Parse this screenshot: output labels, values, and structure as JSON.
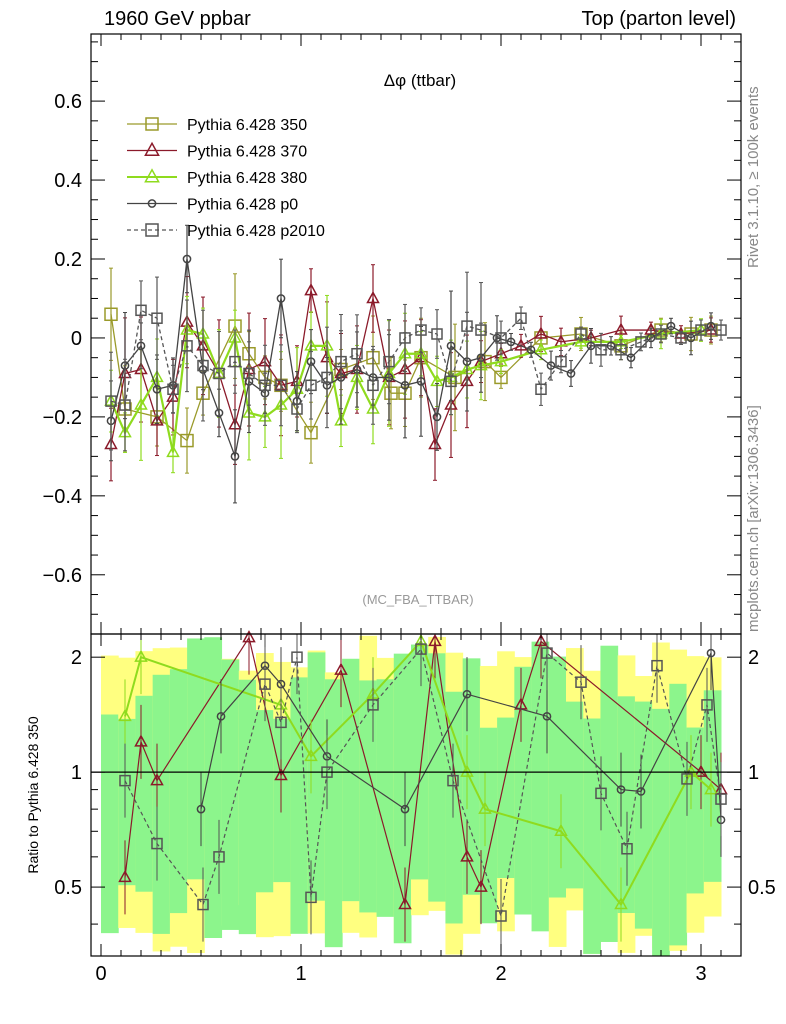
{
  "header": {
    "left": "1960 GeV ppbar",
    "right": "Top (parton level)"
  },
  "side": {
    "rivet": "Rivet 3.1.10, ≥ 100k events",
    "mcplots": "mcplots.cern.ch [arXiv:1306.3436]"
  },
  "chart_data": [
    {
      "type": "line",
      "panel": "main",
      "title": "Δφ (ttbar)",
      "analysis_label": "(MC_FBA_TTBAR)",
      "xlabel": "",
      "ylabel": "",
      "xlim": [
        -0.05,
        3.2
      ],
      "ylim": [
        -0.75,
        0.77
      ],
      "xticks": [
        0,
        1,
        2,
        3
      ],
      "yticks": [
        -0.6,
        -0.4,
        -0.2,
        0,
        0.2,
        0.4,
        0.6
      ],
      "ytick_labels": [
        "−0.6",
        "−0.4",
        "−0.2",
        "0",
        "0.2",
        "0.4",
        "0.6"
      ],
      "legend_position": "top-left",
      "series": [
        {
          "name": "Pythia 6.428 350",
          "color": "#9a9a2a",
          "marker": "square-open",
          "dash": "solid",
          "x": [
            0.05,
            0.12,
            0.28,
            0.43,
            0.51,
            0.67,
            0.74,
            0.82,
            0.9,
            1.05,
            1.2,
            1.36,
            1.45,
            1.52,
            1.6,
            1.77,
            1.92,
            2.0,
            2.2,
            2.4,
            2.6,
            2.8,
            2.95,
            3.05
          ],
          "y": [
            0.06,
            -0.18,
            -0.2,
            -0.26,
            -0.14,
            0.03,
            -0.04,
            -0.1,
            -0.12,
            -0.24,
            -0.08,
            -0.05,
            -0.14,
            -0.14,
            -0.05,
            -0.1,
            -0.06,
            -0.1,
            0.0,
            0.01,
            -0.02,
            0.02,
            0.01,
            0.02
          ]
        },
        {
          "name": "Pythia 6.428 370",
          "color": "#8b1a2a",
          "marker": "triangle-open",
          "dash": "solid",
          "x": [
            0.05,
            0.12,
            0.2,
            0.28,
            0.36,
            0.43,
            0.51,
            0.59,
            0.67,
            0.74,
            0.82,
            0.9,
            0.98,
            1.05,
            1.13,
            1.2,
            1.28,
            1.36,
            1.44,
            1.52,
            1.6,
            1.67,
            1.75,
            1.83,
            1.9,
            2.0,
            2.1,
            2.2,
            2.3,
            2.45,
            2.6,
            2.75,
            2.9,
            3.05
          ],
          "y": [
            -0.27,
            -0.09,
            -0.08,
            -0.21,
            -0.15,
            0.04,
            -0.02,
            -0.09,
            -0.22,
            -0.08,
            -0.06,
            -0.12,
            -0.11,
            0.12,
            -0.05,
            -0.09,
            -0.08,
            0.1,
            -0.1,
            -0.08,
            -0.05,
            -0.27,
            -0.17,
            -0.11,
            -0.06,
            -0.04,
            -0.02,
            0.01,
            -0.01,
            0.0,
            0.02,
            0.02,
            0.01,
            0.02
          ]
        },
        {
          "name": "Pythia 6.428 380",
          "color": "#8fdb1e",
          "marker": "triangle-open",
          "dash": "solid",
          "x": [
            0.05,
            0.12,
            0.2,
            0.28,
            0.36,
            0.43,
            0.51,
            0.59,
            0.67,
            0.74,
            0.82,
            0.9,
            0.98,
            1.05,
            1.13,
            1.2,
            1.28,
            1.36,
            1.44,
            1.52,
            1.6,
            1.68,
            1.75,
            1.83,
            1.9,
            2.0,
            2.2,
            2.4,
            2.6,
            2.8,
            3.0
          ],
          "y": [
            -0.16,
            -0.24,
            -0.17,
            -0.1,
            -0.29,
            0.02,
            0.01,
            -0.09,
            0.0,
            -0.19,
            -0.2,
            -0.17,
            -0.13,
            -0.02,
            -0.02,
            -0.21,
            -0.1,
            -0.18,
            -0.09,
            -0.04,
            -0.04,
            -0.11,
            -0.1,
            -0.08,
            -0.07,
            -0.06,
            -0.03,
            -0.01,
            -0.01,
            0.01,
            0.02
          ]
        },
        {
          "name": "Pythia 6.428 p0",
          "color": "#444444",
          "marker": "circle-open",
          "dash": "solid",
          "x": [
            0.05,
            0.12,
            0.2,
            0.28,
            0.36,
            0.43,
            0.51,
            0.59,
            0.67,
            0.74,
            0.82,
            0.9,
            0.98,
            1.05,
            1.13,
            1.2,
            1.28,
            1.36,
            1.44,
            1.52,
            1.6,
            1.68,
            1.75,
            1.83,
            1.9,
            1.98,
            2.05,
            2.15,
            2.25,
            2.35,
            2.45,
            2.55,
            2.65,
            2.75,
            2.85,
            2.95,
            3.05
          ],
          "y": [
            -0.21,
            -0.07,
            -0.02,
            -0.13,
            -0.12,
            0.2,
            -0.08,
            -0.19,
            -0.3,
            -0.11,
            -0.14,
            0.1,
            -0.16,
            -0.06,
            -0.12,
            -0.1,
            -0.08,
            -0.1,
            -0.1,
            -0.12,
            -0.11,
            -0.2,
            -0.02,
            -0.06,
            -0.05,
            0.0,
            -0.01,
            -0.03,
            -0.07,
            -0.09,
            -0.02,
            -0.02,
            -0.05,
            0.0,
            0.03,
            0.0,
            0.03
          ]
        },
        {
          "name": "Pythia 6.428 p2010",
          "color": "#555555",
          "marker": "square-open",
          "dash": "dashed",
          "x": [
            0.05,
            0.12,
            0.2,
            0.28,
            0.36,
            0.43,
            0.51,
            0.59,
            0.67,
            0.74,
            0.82,
            0.9,
            0.98,
            1.05,
            1.13,
            1.2,
            1.28,
            1.36,
            1.44,
            1.52,
            1.6,
            1.68,
            1.75,
            1.83,
            1.9,
            2.0,
            2.1,
            2.2,
            2.3,
            2.4,
            2.5,
            2.6,
            2.7,
            2.8,
            2.9,
            3.0,
            3.1
          ],
          "y": [
            -0.16,
            -0.17,
            0.07,
            0.05,
            -0.13,
            -0.02,
            -0.07,
            -0.09,
            -0.06,
            -0.09,
            -0.12,
            -0.12,
            -0.18,
            -0.12,
            -0.1,
            -0.06,
            -0.04,
            -0.12,
            -0.06,
            0.0,
            0.02,
            0.01,
            -0.11,
            0.03,
            0.02,
            0.0,
            0.05,
            -0.13,
            -0.06,
            0.01,
            -0.03,
            -0.03,
            -0.01,
            0.01,
            0.0,
            0.02,
            0.02
          ]
        }
      ]
    },
    {
      "type": "line",
      "panel": "ratio",
      "ylabel": "Ratio to Pythia 6.428 350",
      "xlim": [
        -0.05,
        3.2
      ],
      "ylim": [
        0.33,
        2.3
      ],
      "yscale": "log",
      "xticks": [
        0,
        1,
        2,
        3
      ],
      "yticks": [
        0.5,
        1,
        2
      ],
      "ytick_labels": [
        "0.5",
        "1",
        "2"
      ],
      "reference_line": 1,
      "bands": {
        "outer_color": "#ffff80",
        "inner_color": "#8cf58c"
      },
      "series": [
        {
          "name": "Pythia 6.428 370",
          "color": "#8b1a2a",
          "x": [
            0.12,
            0.2,
            0.28,
            0.74,
            0.9,
            1.2,
            1.52,
            1.67,
            1.83,
            1.9,
            2.1,
            2.2,
            3.0,
            3.1
          ],
          "y": [
            0.53,
            1.2,
            0.95,
            2.25,
            0.98,
            1.85,
            0.45,
            2.2,
            0.6,
            0.5,
            1.5,
            2.2,
            1.0,
            0.9
          ]
        },
        {
          "name": "Pythia 6.428 380",
          "color": "#8fdb1e",
          "x": [
            0.12,
            0.2,
            0.9,
            1.05,
            1.36,
            1.6,
            1.83,
            1.92,
            2.3,
            2.6,
            2.95,
            3.05
          ],
          "y": [
            1.4,
            2.0,
            1.5,
            1.1,
            1.6,
            2.2,
            1.0,
            0.8,
            0.7,
            0.45,
            1.0,
            0.9
          ]
        },
        {
          "name": "Pythia 6.428 p0",
          "color": "#444444",
          "x": [
            0.5,
            0.6,
            0.82,
            0.9,
            1.13,
            1.52,
            1.83,
            2.23,
            2.6,
            2.7,
            3.05,
            3.1
          ],
          "y": [
            0.8,
            1.4,
            1.9,
            1.7,
            1.1,
            0.8,
            1.6,
            1.4,
            0.9,
            0.89,
            2.05,
            0.75
          ]
        },
        {
          "name": "Pythia 6.428 p2010",
          "color": "#555555",
          "x": [
            0.12,
            0.28,
            0.51,
            0.59,
            0.82,
            0.9,
            0.98,
            1.05,
            1.13,
            1.36,
            1.6,
            1.76,
            2.0,
            2.23,
            2.4,
            2.5,
            2.63,
            2.78,
            2.93,
            3.03,
            3.1
          ],
          "y": [
            0.95,
            0.65,
            0.45,
            0.6,
            1.7,
            1.35,
            2.0,
            0.47,
            1.0,
            1.5,
            2.1,
            0.95,
            0.42,
            2.05,
            1.72,
            0.88,
            0.63,
            1.9,
            0.96,
            1.5,
            0.85
          ]
        }
      ]
    }
  ]
}
